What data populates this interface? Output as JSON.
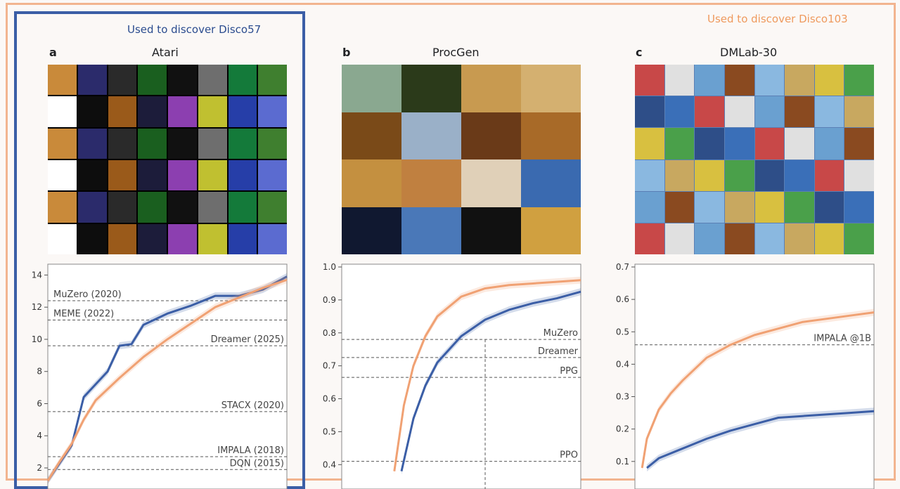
{
  "captions": {
    "left": "Used to discover Disco57",
    "right": "Used to discover Disco103"
  },
  "panels": [
    {
      "letter": "a",
      "title": "Atari"
    },
    {
      "letter": "b",
      "title": "ProcGen"
    },
    {
      "letter": "c",
      "title": "DMLab-30"
    }
  ],
  "colors": {
    "disco57": "#3b5ea6",
    "disco103": "#f0a173",
    "frame_orange": "#f2b48f",
    "frame_blue": "#3b5ea6"
  },
  "chart_data": [
    {
      "type": "line",
      "panel": "a",
      "ylim": [
        2,
        14.5
      ],
      "yticks": [
        2,
        4,
        6,
        8,
        10,
        12,
        14
      ],
      "grid": false,
      "series": [
        {
          "color": "#3b5ea6",
          "x": [
            0,
            0.05,
            0.1,
            0.15,
            0.2,
            0.25,
            0.3,
            0.35,
            0.4,
            0.5,
            0.6,
            0.7,
            0.8,
            0.9,
            1.0
          ],
          "y": [
            1.2,
            2.3,
            3.4,
            6.4,
            7.2,
            8.0,
            9.6,
            9.7,
            10.9,
            11.6,
            12.1,
            12.7,
            12.7,
            13.1,
            13.9
          ]
        },
        {
          "color": "#f0a173",
          "x": [
            0,
            0.05,
            0.1,
            0.15,
            0.2,
            0.3,
            0.4,
            0.5,
            0.6,
            0.7,
            0.8,
            0.9,
            1.0
          ],
          "y": [
            1.2,
            2.4,
            3.5,
            5.0,
            6.2,
            7.6,
            8.9,
            10.0,
            11.0,
            12.0,
            12.6,
            13.2,
            13.7
          ]
        }
      ],
      "reference_lines": [
        {
          "label": "MuZero (2020)",
          "y": 12.4,
          "label_side": "left"
        },
        {
          "label": "MEME (2022)",
          "y": 11.2,
          "label_side": "left"
        },
        {
          "label": "Dreamer (2025)",
          "y": 9.6,
          "label_side": "right"
        },
        {
          "label": "STACX (2020)",
          "y": 5.5,
          "label_side": "right"
        },
        {
          "label": "IMPALA (2018)",
          "y": 2.7,
          "label_side": "right"
        },
        {
          "label": "DQN (2015)",
          "y": 1.9,
          "label_side": "right"
        }
      ]
    },
    {
      "type": "line",
      "panel": "b",
      "ylim": [
        0.39,
        1.0
      ],
      "yticks": [
        0.4,
        0.5,
        0.6,
        0.7,
        0.8,
        0.9,
        1.0
      ],
      "grid": false,
      "series": [
        {
          "color": "#3b5ea6",
          "x": [
            0.25,
            0.3,
            0.35,
            0.4,
            0.5,
            0.6,
            0.7,
            0.8,
            0.9,
            1.0
          ],
          "y": [
            0.38,
            0.54,
            0.64,
            0.71,
            0.79,
            0.84,
            0.87,
            0.89,
            0.905,
            0.925
          ]
        },
        {
          "color": "#f0a173",
          "x": [
            0.22,
            0.26,
            0.3,
            0.35,
            0.4,
            0.5,
            0.6,
            0.7,
            0.8,
            0.9,
            1.0
          ],
          "y": [
            0.38,
            0.58,
            0.7,
            0.79,
            0.85,
            0.91,
            0.935,
            0.945,
            0.95,
            0.955,
            0.96
          ]
        }
      ],
      "reference_lines": [
        {
          "label": "MuZero",
          "y": 0.78,
          "label_side": "right"
        },
        {
          "label": "Dreamer",
          "y": 0.725,
          "label_side": "right"
        },
        {
          "label": "PPG",
          "y": 0.665,
          "label_side": "right"
        },
        {
          "label": "PPO",
          "y": 0.41,
          "label_side": "right"
        }
      ]
    },
    {
      "type": "line",
      "panel": "c",
      "ylim": [
        0.08,
        0.7
      ],
      "yticks": [
        0.1,
        0.2,
        0.3,
        0.4,
        0.5,
        0.6,
        0.7
      ],
      "grid": false,
      "series": [
        {
          "color": "#3b5ea6",
          "x": [
            0.05,
            0.1,
            0.2,
            0.3,
            0.4,
            0.5,
            0.6,
            0.7,
            0.8,
            0.9,
            1.0
          ],
          "y": [
            0.08,
            0.11,
            0.14,
            0.17,
            0.195,
            0.215,
            0.235,
            0.24,
            0.245,
            0.25,
            0.255
          ]
        },
        {
          "color": "#f0a173",
          "x": [
            0.03,
            0.05,
            0.1,
            0.15,
            0.2,
            0.3,
            0.4,
            0.5,
            0.6,
            0.7,
            0.8,
            0.9,
            1.0
          ],
          "y": [
            0.08,
            0.17,
            0.26,
            0.31,
            0.35,
            0.42,
            0.46,
            0.49,
            0.51,
            0.53,
            0.54,
            0.55,
            0.56
          ]
        }
      ],
      "reference_lines": [
        {
          "label": "IMPALA @1B",
          "y": 0.46,
          "label_side": "right"
        }
      ]
    }
  ]
}
